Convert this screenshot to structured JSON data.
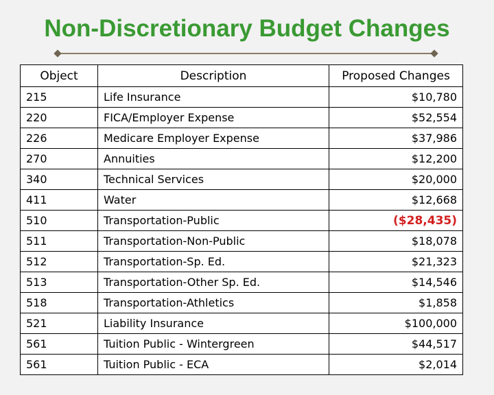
{
  "title": "Non-Discretionary Budget Changes",
  "headers": {
    "object": "Object",
    "description": "Description",
    "proposed": "Proposed Changes"
  },
  "rows": [
    {
      "object": "215",
      "description": "Life Insurance",
      "amount": "$10,780"
    },
    {
      "object": "220",
      "description": "FICA/Employer Expense",
      "amount": "$52,554"
    },
    {
      "object": "226",
      "description": "Medicare Employer Expense",
      "amount": "$37,986"
    },
    {
      "object": "270",
      "description": "Annuities",
      "amount": "$12,200"
    },
    {
      "object": "340",
      "description": "Technical Services",
      "amount": "$20,000"
    },
    {
      "object": "411",
      "description": "Water",
      "amount": "$12,668"
    },
    {
      "object": "510",
      "description": "Transportation-Public",
      "amount": "($28,435)"
    },
    {
      "object": "511",
      "description": "Transportation-Non-Public",
      "amount": "$18,078"
    },
    {
      "object": "512",
      "description": "Transportation-Sp. Ed.",
      "amount": "$21,323"
    },
    {
      "object": "513",
      "description": "Transportation-Other Sp. Ed.",
      "amount": "$14,546"
    },
    {
      "object": "518",
      "description": "Transportation-Athletics",
      "amount": "$1,858"
    },
    {
      "object": "521",
      "description": "Liability Insurance",
      "amount": "$100,000"
    },
    {
      "object": "561",
      "description": "Tuition Public - Wintergreen",
      "amount": "$44,517"
    },
    {
      "object": "561",
      "description": "Tuition Public - ECA",
      "amount": "$2,014"
    }
  ],
  "colors": {
    "title": "#3a9a33",
    "negative": "#d42020",
    "rule": "#8a7c66"
  }
}
